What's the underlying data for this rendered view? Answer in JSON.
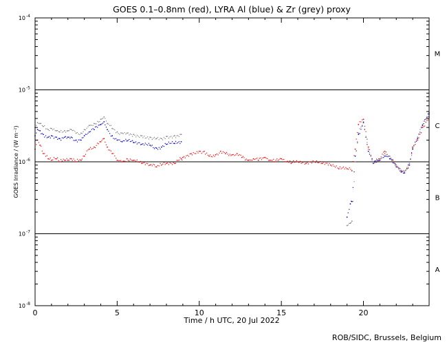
{
  "chart_data": {
    "type": "line",
    "title": "GOES 0.1–0.8nm (red), LYRA Al (blue) & Zr (grey) proxy",
    "xlabel": "Time / h UTC, 20 Jul 2022",
    "ylabel": "GOES Irradiance / (W m⁻²)",
    "xlim": [
      0,
      24
    ],
    "ylim": [
      1e-08,
      0.0001
    ],
    "yscale": "log",
    "x_ticks": [
      0,
      5,
      10,
      15,
      20
    ],
    "x_tick_labels": [
      "0",
      "5",
      "10",
      "15",
      "20"
    ],
    "y_ticks": [
      {
        "base": "10",
        "exp": "-8"
      },
      {
        "base": "10",
        "exp": "-7"
      },
      {
        "base": "10",
        "exp": "-6"
      },
      {
        "base": "10",
        "exp": "-5"
      },
      {
        "base": "10",
        "exp": "-4"
      }
    ],
    "class_thresholds": [
      1e-07,
      1e-06,
      1e-05
    ],
    "flare_classes": [
      {
        "label": "A",
        "level": 3.2e-08
      },
      {
        "label": "B",
        "level": 3.2e-07
      },
      {
        "label": "C",
        "level": 3.2e-06
      },
      {
        "label": "M",
        "level": 3.2e-05
      }
    ],
    "credit": "ROB/SIDC, Brussels, Belgium",
    "series": [
      {
        "name": "GOES 0.1-0.8nm",
        "color": "#ff0000",
        "x": [
          0.0,
          0.15,
          0.3,
          0.5,
          0.8,
          1.0,
          1.3,
          1.5,
          1.8,
          2.0,
          2.2,
          2.5,
          2.8,
          3.0,
          3.3,
          3.6,
          4.0,
          4.2,
          4.4,
          4.7,
          5.0,
          5.3,
          5.6,
          6.0,
          6.5,
          7.0,
          7.4,
          7.7,
          8.0,
          8.5,
          8.9,
          9.0,
          9.5,
          10.0,
          10.3,
          10.6,
          11.0,
          11.3,
          11.6,
          12.0,
          12.3,
          12.6,
          13.0,
          13.3,
          13.6,
          14.0,
          14.3,
          14.6,
          15.0,
          15.3,
          15.6,
          16.0,
          16.5,
          17.0,
          17.5,
          18.0,
          18.5,
          19.0,
          19.3,
          19.5,
          19.7,
          20.0,
          20.3,
          20.6,
          21.0,
          21.3,
          21.6,
          22.0,
          22.3,
          22.5,
          22.8,
          23.0,
          23.3,
          23.6,
          24.0
        ],
        "values": [
          1.5e-06,
          2e-06,
          1.7e-06,
          1.3e-06,
          1.1e-06,
          1.05e-06,
          1.1e-06,
          1e-06,
          1.05e-06,
          1.05e-06,
          1.1e-06,
          1e-06,
          1.05e-06,
          1.2e-06,
          1.5e-06,
          1.6e-06,
          1.9e-06,
          2.1e-06,
          1.6e-06,
          1.3e-06,
          1.05e-06,
          1e-06,
          1.1e-06,
          1.05e-06,
          9.5e-07,
          9e-07,
          8.5e-07,
          9e-07,
          9.5e-07,
          9.5e-07,
          1.1e-06,
          1.15e-06,
          1.3e-06,
          1.4e-06,
          1.4e-06,
          1.2e-06,
          1.25e-06,
          1.4e-06,
          1.3e-06,
          1.25e-06,
          1.3e-06,
          1.15e-06,
          1.05e-06,
          1.1e-06,
          1.05e-06,
          1.15e-06,
          1.05e-06,
          1e-06,
          1.1e-06,
          1e-06,
          9.5e-07,
          1e-06,
          9.5e-07,
          1e-06,
          9.5e-07,
          9e-07,
          8e-07,
          8e-07,
          7.5e-07,
          1.5e-06,
          3.3e-06,
          3.9e-06,
          1.6e-06,
          1e-06,
          1.1e-06,
          1.4e-06,
          1.2e-06,
          9e-07,
          7.5e-07,
          7e-07,
          9e-07,
          1.6e-06,
          2e-06,
          3e-06,
          4.2e-06
        ]
      },
      {
        "name": "LYRA Al proxy",
        "color": "#0000cc",
        "x": [
          0.0,
          0.15,
          0.3,
          0.5,
          0.8,
          1.0,
          1.3,
          1.5,
          1.8,
          2.0,
          2.2,
          2.5,
          2.8,
          3.0,
          3.3,
          3.6,
          4.0,
          4.2,
          4.4,
          4.7,
          5.0,
          5.3,
          5.6,
          6.0,
          6.5,
          7.0,
          7.4,
          7.7,
          8.0,
          8.5,
          8.9,
          19.0,
          19.2,
          19.3,
          19.5,
          19.7,
          20.0,
          20.3,
          20.6,
          21.0,
          21.3,
          21.6,
          22.0,
          22.3,
          22.5,
          22.8,
          23.0,
          23.3,
          23.6,
          24.0
        ],
        "values": [
          2.3e-06,
          2.8e-06,
          2.7e-06,
          2.4e-06,
          2.2e-06,
          2.3e-06,
          2.2e-06,
          2.1e-06,
          2.2e-06,
          2.2e-06,
          2.2e-06,
          2e-06,
          2e-06,
          2.3e-06,
          2.6e-06,
          2.8e-06,
          3.3e-06,
          3.6e-06,
          2.8e-06,
          2.3e-06,
          2e-06,
          1.9e-06,
          1.95e-06,
          1.85e-06,
          1.75e-06,
          1.7e-06,
          1.55e-06,
          1.6e-06,
          1.75e-06,
          1.8e-06,
          1.9e-06,
          1.7e-07,
          2.6e-07,
          2.8e-07,
          1.2e-06,
          2.4e-06,
          3.5e-06,
          1.4e-06,
          9.5e-07,
          1.05e-06,
          1.2e-06,
          1.1e-06,
          8.5e-07,
          7.2e-07,
          7e-07,
          9e-07,
          1.5e-06,
          2.1e-06,
          3.2e-06,
          4.6e-06
        ]
      },
      {
        "name": "LYRA Zr proxy",
        "color": "#808080",
        "x": [
          0.0,
          0.15,
          0.3,
          0.5,
          0.8,
          1.0,
          1.3,
          1.5,
          1.8,
          2.0,
          2.2,
          2.5,
          2.8,
          3.0,
          3.3,
          3.6,
          4.0,
          4.2,
          4.4,
          4.7,
          5.0,
          5.3,
          5.6,
          6.0,
          6.5,
          7.0,
          7.4,
          7.7,
          8.0,
          8.5,
          8.9,
          19.0,
          19.2,
          19.3,
          19.5,
          19.7,
          20.0,
          20.3,
          20.6,
          21.0,
          21.3,
          21.6,
          22.0,
          22.3,
          22.5,
          22.8,
          23.0,
          23.3,
          23.6,
          24.0
        ],
        "values": [
          3e-06,
          3.5e-06,
          3.4e-06,
          3.1e-06,
          2.8e-06,
          2.9e-06,
          2.7e-06,
          2.6e-06,
          2.7e-06,
          2.7e-06,
          2.8e-06,
          2.5e-06,
          2.5e-06,
          2.8e-06,
          3.2e-06,
          3.4e-06,
          3.9e-06,
          4.2e-06,
          3.4e-06,
          2.9e-06,
          2.6e-06,
          2.5e-06,
          2.5e-06,
          2.4e-06,
          2.3e-06,
          2.2e-06,
          2.1e-06,
          2.1e-06,
          2.25e-06,
          2.3e-06,
          2.4e-06,
          1.3e-07,
          1.4e-07,
          1.5e-07,
          1e-06,
          2.5e-06,
          3.6e-06,
          1.5e-06,
          1e-06,
          1.1e-06,
          1.3e-06,
          1.2e-06,
          9e-07,
          7.6e-07,
          7.4e-07,
          9.5e-07,
          1.55e-06,
          2.2e-06,
          3.3e-06,
          4.8e-06
        ]
      }
    ]
  }
}
